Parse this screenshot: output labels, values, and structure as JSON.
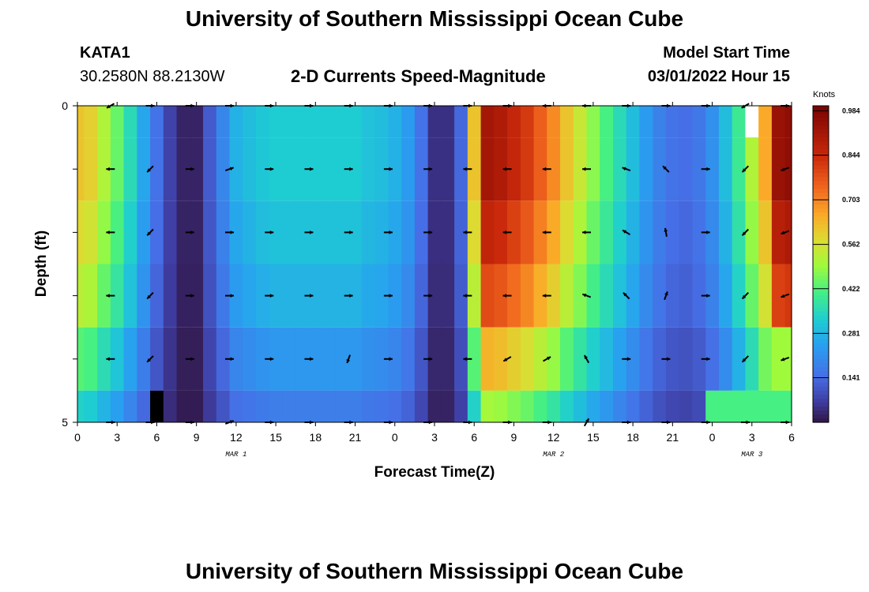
{
  "header": {
    "title": "University of Southern Mississippi Ocean Cube",
    "station": "KATA1",
    "coords": "30.2580N  88.2130W",
    "chart_title": "2-D Currents Speed-Magnitude",
    "model_label": "Model Start Time",
    "model_time": "03/01/2022 Hour 15"
  },
  "footer": {
    "title": "University of Southern Mississippi Ocean Cube"
  },
  "chart_data": {
    "type": "heatmap",
    "title": "2-D Currents Speed-Magnitude",
    "xlabel": "Forecast Time(Z)",
    "ylabel": "Depth (ft)",
    "x_tick_labels": [
      "0",
      "3",
      "6",
      "9",
      "12",
      "15",
      "18",
      "21",
      "0",
      "3",
      "6",
      "9",
      "12",
      "15",
      "18",
      "21",
      "0",
      "3",
      "6"
    ],
    "day_labels": [
      "MAR 1",
      "MAR 2",
      "MAR 3"
    ],
    "y_tick_labels": [
      "0",
      "5"
    ],
    "ylim": [
      0,
      5
    ],
    "time_hours": [
      0,
      1,
      2,
      3,
      4,
      5,
      6,
      7,
      8,
      9,
      10,
      11,
      12,
      13,
      14,
      15,
      16,
      17,
      18,
      19,
      20,
      21,
      22,
      23,
      24,
      25,
      26,
      27,
      28,
      29,
      30,
      31,
      32,
      33,
      34,
      35,
      36,
      37,
      38,
      39,
      40,
      41,
      42,
      43,
      44,
      45,
      46,
      47,
      48,
      49,
      50,
      51,
      52,
      53,
      54
    ],
    "depth_layers_ft": [
      0,
      1,
      2,
      3,
      4,
      5
    ],
    "colorbar": {
      "title": "Knots",
      "tick_labels": [
        "0.984",
        "0.844",
        "0.703",
        "0.562",
        "0.422",
        "0.281",
        "0.141"
      ],
      "tick_values": [
        0.984,
        0.844,
        0.703,
        0.562,
        0.422,
        0.281,
        0.141
      ],
      "min": 0,
      "max": 1.0
    },
    "profile_speed_knots": [
      0.62,
      0.6,
      0.52,
      0.45,
      0.36,
      0.26,
      0.16,
      0.08,
      0.03,
      0.03,
      0.12,
      0.2,
      0.28,
      0.3,
      0.32,
      0.33,
      0.33,
      0.33,
      0.33,
      0.33,
      0.33,
      0.33,
      0.31,
      0.3,
      0.28,
      0.24,
      0.16,
      0.05,
      0.05,
      0.14,
      0.62,
      0.92,
      0.9,
      0.86,
      0.82,
      0.76,
      0.7,
      0.62,
      0.55,
      0.48,
      0.42,
      0.36,
      0.3,
      0.24,
      0.19,
      0.16,
      0.15,
      0.17,
      0.22,
      0.3,
      0.4,
      0.52,
      0.66,
      0.94,
      0.96
    ],
    "depth_factors": [
      1.0,
      1.0,
      0.94,
      0.86,
      0.7,
      0.55
    ],
    "arrow_times": [
      2.5,
      5.5,
      8.5,
      11.5,
      14.5,
      17.5,
      20.5,
      23.5,
      26.5,
      29.5,
      32.5,
      35.5,
      38.5,
      41.5,
      44.5,
      47.5,
      50.5,
      53.5
    ],
    "arrow_direction_deg": [
      [
        210,
        0,
        0,
        0,
        0,
        0,
        0,
        0,
        0,
        0,
        0,
        180,
        180,
        0,
        0,
        0,
        210,
        0
      ],
      [
        180,
        225,
        0,
        20,
        0,
        0,
        0,
        0,
        0,
        180,
        180,
        180,
        180,
        160,
        135,
        0,
        225,
        200
      ],
      [
        180,
        225,
        0,
        0,
        0,
        0,
        0,
        0,
        0,
        180,
        180,
        180,
        180,
        150,
        100,
        0,
        225,
        200
      ],
      [
        180,
        225,
        0,
        0,
        0,
        0,
        0,
        0,
        0,
        180,
        180,
        180,
        160,
        135,
        70,
        0,
        225,
        200
      ],
      [
        180,
        225,
        0,
        0,
        0,
        0,
        250,
        0,
        0,
        180,
        210,
        30,
        120,
        0,
        0,
        0,
        225,
        200
      ],
      [
        0,
        0,
        0,
        20,
        0,
        0,
        0,
        0,
        0,
        0,
        0,
        0,
        60,
        0,
        0,
        0,
        0,
        0
      ]
    ],
    "missing_cells": [
      {
        "time_hour": 51,
        "depth_layer": 0,
        "color": "#ffffff"
      },
      {
        "time_hour": 6,
        "depth_layer": 5,
        "color": "#000000"
      }
    ]
  }
}
